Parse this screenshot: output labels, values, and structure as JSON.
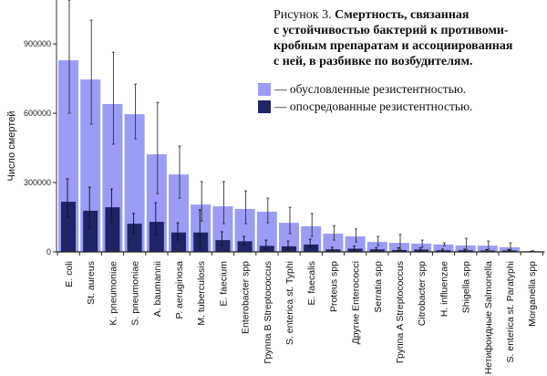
{
  "chart_data": {
    "type": "bar",
    "title_prefix": "Рисунок 3.",
    "title": "Смертность, связанная с устойчивостью бактерий к противомикробным препаратам и ассоциированная с ней, в разбивке по возбудителям.",
    "title_lines": [
      "Смертность, связанная",
      "с устойчивостью бактерий к противоми-",
      "кробным препаратам и ассоциированная",
      "с ней, в разбивке по возбудителям."
    ],
    "xlabel": "",
    "ylabel": "Число смертей",
    "ylim": [
      0,
      1090000
    ],
    "yticks": [
      0,
      300000,
      600000,
      900000
    ],
    "ytick_labels": [
      "0",
      "300000",
      "600000",
      "900000"
    ],
    "grid": false,
    "legend_placement": "top-right",
    "categories": [
      "E. coli",
      "St. aureus",
      "K. pneumoniae",
      "S. pneumoniae",
      "A. baumannii",
      "P. aeruginosa",
      "M. tuberculosis",
      "E. faecium",
      "Enterobacter spp",
      "Группа B Streptococcus",
      "S. enterica st. Typhi",
      "E. faecalis",
      "Proteus spp",
      "Другие Enterococci",
      "Serratia spp",
      "Группа A Streptococcus",
      "Citrobacter spp",
      "H. influenzae",
      "Shigella spp",
      "Нетифоидные Salmonella",
      "S. enterica st. Paratyphi",
      "Morganella spp"
    ],
    "series": [
      {
        "name": "— обусловленные резистентностью.",
        "color": "#9b9cf6",
        "values": [
          829000,
          746000,
          640000,
          596000,
          422000,
          335000,
          205000,
          197000,
          186000,
          174000,
          126000,
          111000,
          79000,
          67000,
          43000,
          39000,
          36000,
          32000,
          28000,
          27000,
          20000,
          3000
        ],
        "lower": [
          600000,
          553000,
          466000,
          489000,
          252000,
          233000,
          134000,
          122000,
          122000,
          126000,
          79000,
          67000,
          51000,
          43000,
          27000,
          11000,
          20000,
          27000,
          11000,
          11000,
          8000,
          1000
        ],
        "upper": [
          1100000,
          1003000,
          864000,
          726000,
          647000,
          458000,
          304000,
          304000,
          264000,
          233000,
          193000,
          166000,
          114000,
          99000,
          67000,
          75000,
          51000,
          39000,
          59000,
          47000,
          39000,
          5000
        ]
      },
      {
        "name": "— опосредованные резистентностью.",
        "color": "#1f2466",
        "values": [
          217000,
          178000,
          193000,
          122000,
          130000,
          84000,
          84000,
          51000,
          46000,
          26000,
          24000,
          32000,
          11000,
          14000,
          11000,
          8000,
          10000,
          7000,
          7000,
          6000,
          6000,
          1000
        ],
        "lower": [
          150000,
          103000,
          130000,
          79000,
          75000,
          51000,
          16000,
          28000,
          32000,
          12000,
          10000,
          20000,
          5000,
          6000,
          6000,
          3000,
          5000,
          3000,
          3000,
          2000,
          2000,
          500
        ],
        "upper": [
          316000,
          280000,
          272000,
          166000,
          213000,
          126000,
          182000,
          87000,
          67000,
          51000,
          47000,
          55000,
          20000,
          25000,
          18000,
          18000,
          17000,
          12000,
          12000,
          10000,
          10000,
          2000
        ]
      }
    ]
  }
}
